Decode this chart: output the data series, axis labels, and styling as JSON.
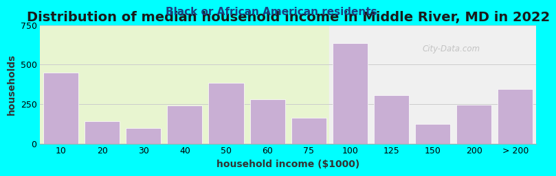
{
  "title": "Distribution of median household income in Middle River, MD in 2022",
  "subtitle": "Black or African American residents",
  "xlabel": "household income ($1000)",
  "ylabel": "households",
  "background_color": "#00FFFF",
  "plot_bg_left": "#e8f5d0",
  "plot_bg_right": "#f0f0f0",
  "bar_color": "#c9afd4",
  "bar_edgecolor": "#ffffff",
  "categories": [
    "10",
    "20",
    "30",
    "40",
    "50",
    "60",
    "75",
    "100",
    "125",
    "150",
    "200",
    "> 200"
  ],
  "values": [
    450,
    140,
    100,
    240,
    385,
    280,
    165,
    635,
    305,
    125,
    245,
    345
  ],
  "ylim": [
    0,
    750
  ],
  "yticks": [
    0,
    250,
    500,
    750
  ],
  "title_fontsize": 14,
  "subtitle_fontsize": 11,
  "axis_label_fontsize": 10,
  "tick_fontsize": 9,
  "watermark_text": "City-Data.com",
  "title_color": "#1a1a1a",
  "subtitle_color": "#1a4080"
}
